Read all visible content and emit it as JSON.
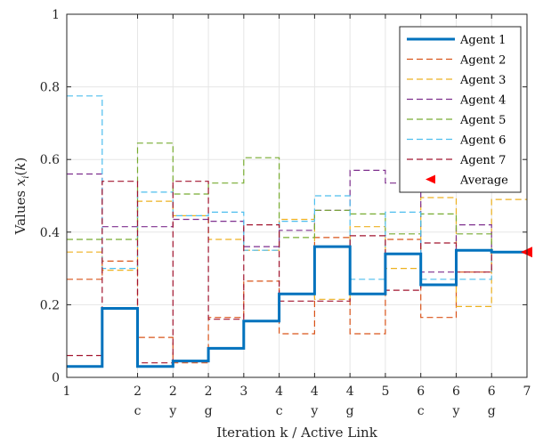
{
  "chart_data": {
    "type": "line",
    "step": true,
    "xlabel": "Iteration k / Active Link",
    "ylabel_prefix": "Values ",
    "ylabel_math": "x_i(k)",
    "xlim": [
      1,
      7.5
    ],
    "ylim": [
      0,
      1
    ],
    "grid": true,
    "legend_placement": "top-right",
    "x_ticks": [
      {
        "x": 1,
        "label": "1",
        "link": ""
      },
      {
        "x": 2,
        "label": "2",
        "link": "c"
      },
      {
        "x": 2.5,
        "label": "2",
        "link": "y"
      },
      {
        "x": 3,
        "label": "2",
        "link": "g"
      },
      {
        "x": 3.5,
        "label": "3",
        "link": ""
      },
      {
        "x": 4,
        "label": "4",
        "link": "c"
      },
      {
        "x": 4.5,
        "label": "4",
        "link": "y"
      },
      {
        "x": 5,
        "label": "4",
        "link": "g"
      },
      {
        "x": 5.5,
        "label": "5",
        "link": ""
      },
      {
        "x": 6,
        "label": "6",
        "link": "c"
      },
      {
        "x": 6.5,
        "label": "6",
        "link": "y"
      },
      {
        "x": 7,
        "label": "6",
        "link": "g"
      },
      {
        "x": 7.5,
        "label": "7",
        "link": ""
      }
    ],
    "y_ticks": [
      0,
      0.2,
      0.4,
      0.6,
      0.8,
      1
    ],
    "x_breaks": [
      1,
      1.5,
      2,
      2.5,
      3,
      3.5,
      4,
      4.5,
      5,
      5.5,
      6,
      6.5,
      7,
      7.5
    ],
    "series": [
      {
        "name": "Agent 1",
        "color": "#0072BD",
        "dash": "solid",
        "width": 3,
        "values": [
          0.03,
          0.19,
          0.03,
          0.045,
          0.08,
          0.155,
          0.23,
          0.36,
          0.23,
          0.34,
          0.255,
          0.35,
          0.345
        ]
      },
      {
        "name": "Agent 2",
        "color": "#D95319",
        "dash": "dashed",
        "width": 1.2,
        "values": [
          0.27,
          0.32,
          0.11,
          0.04,
          0.165,
          0.265,
          0.12,
          0.385,
          0.12,
          0.38,
          0.165,
          0.29,
          0.345
        ]
      },
      {
        "name": "Agent 3",
        "color": "#EDB120",
        "dash": "dashed",
        "width": 1.2,
        "values": [
          0.345,
          0.295,
          0.485,
          0.445,
          0.38,
          0.35,
          0.435,
          0.215,
          0.415,
          0.3,
          0.495,
          0.195,
          0.49
        ]
      },
      {
        "name": "Agent 4",
        "color": "#7E2F8E",
        "dash": "dashed",
        "width": 1.2,
        "values": [
          0.56,
          0.415,
          0.415,
          0.435,
          0.43,
          0.36,
          0.405,
          0.46,
          0.57,
          0.535,
          0.29,
          0.42,
          0.345
        ]
      },
      {
        "name": "Agent 5",
        "color": "#77AC30",
        "dash": "dashed",
        "width": 1.2,
        "values": [
          0.38,
          0.38,
          0.645,
          0.505,
          0.535,
          0.605,
          0.385,
          0.46,
          0.45,
          0.395,
          0.45,
          0.395,
          0.345
        ]
      },
      {
        "name": "Agent 6",
        "color": "#4DBEEE",
        "dash": "dashed",
        "width": 1.2,
        "values": [
          0.775,
          0.3,
          0.51,
          0.445,
          0.455,
          0.35,
          0.43,
          0.5,
          0.27,
          0.455,
          0.27,
          0.27,
          0.345
        ]
      },
      {
        "name": "Agent 7",
        "color": "#A2142F",
        "dash": "dashed",
        "width": 1.2,
        "values": [
          0.06,
          0.54,
          0.04,
          0.54,
          0.16,
          0.42,
          0.21,
          0.21,
          0.39,
          0.24,
          0.37,
          0.29,
          0.345
        ]
      }
    ],
    "average": {
      "name": "Average",
      "x": 7.5,
      "y": 0.345,
      "color": "#FF0000",
      "marker": "triangle-left"
    }
  }
}
